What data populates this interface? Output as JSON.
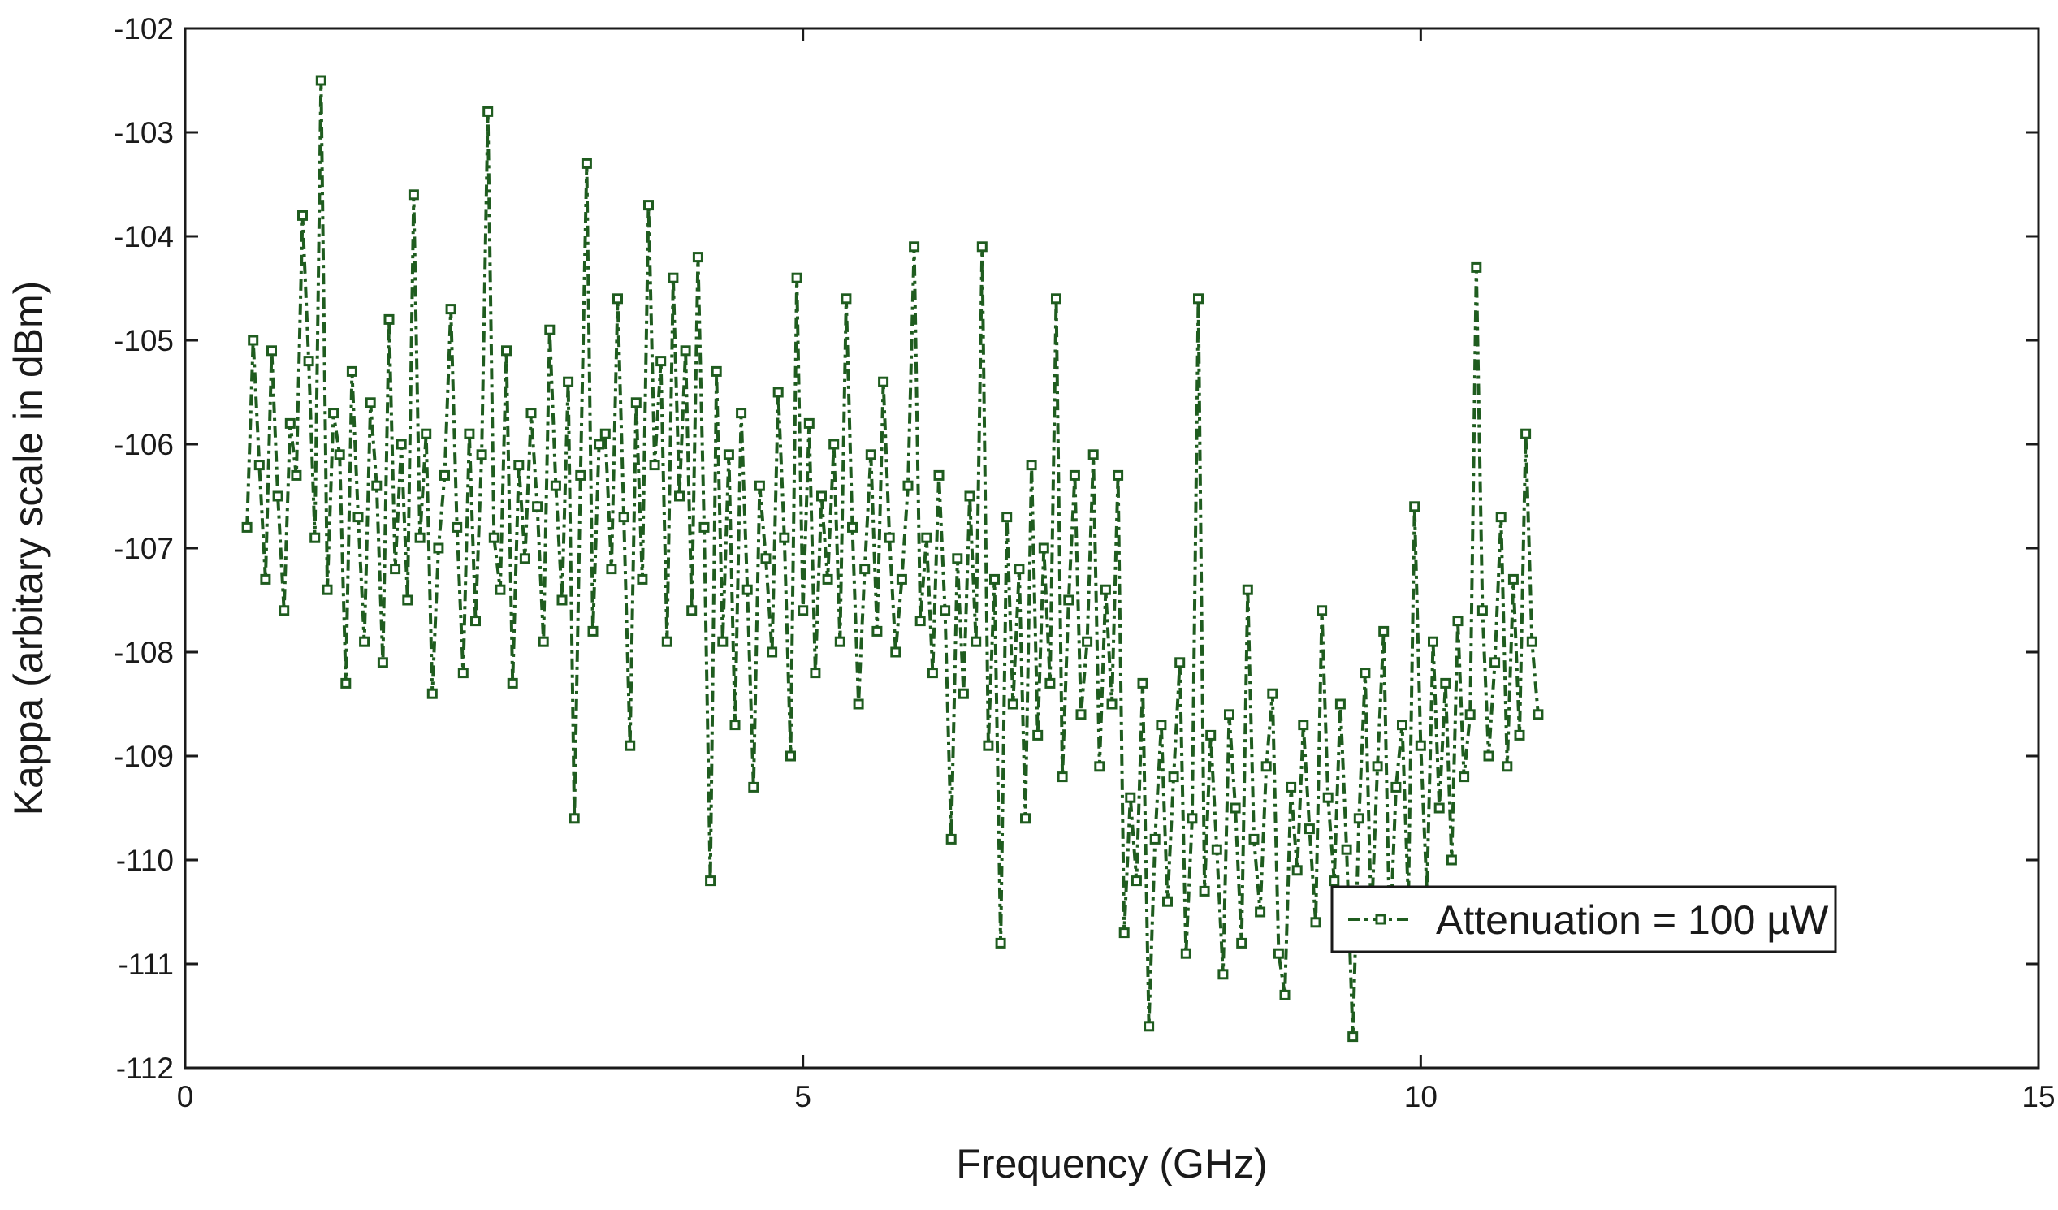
{
  "chart_data": {
    "type": "line",
    "title": "",
    "xlabel": "Frequency (GHz)",
    "ylabel": "Kappa (arbitary scale in dBm)",
    "xlim": [
      0,
      15
    ],
    "ylim": [
      -112,
      -102
    ],
    "x_ticks": [
      0,
      5,
      10,
      15
    ],
    "x_tick_labels": [
      "0",
      "5",
      "10",
      "15"
    ],
    "y_ticks": [
      -112,
      -111,
      -110,
      -109,
      -108,
      -107,
      -106,
      -105,
      -104,
      -103,
      -102
    ],
    "y_tick_labels": [
      "-112",
      "-111",
      "-110",
      "-109",
      "-108",
      "-107",
      "-106",
      "-105",
      "-104",
      "-103",
      "-102"
    ],
    "grid": false,
    "legend_position": "bottom-right",
    "series": [
      {
        "name": "Attenuation = 100 µW",
        "color": "#1f5c1f",
        "line_style": "dash-dot",
        "marker": "square",
        "x_start": 0.5,
        "x_step": 0.05,
        "values": [
          -106.8,
          -105.0,
          -106.2,
          -107.3,
          -105.1,
          -106.5,
          -107.6,
          -105.8,
          -106.3,
          -103.8,
          -105.2,
          -106.9,
          -102.5,
          -107.4,
          -105.7,
          -106.1,
          -108.3,
          -105.3,
          -106.7,
          -107.9,
          -105.6,
          -106.4,
          -108.1,
          -104.8,
          -107.2,
          -106.0,
          -107.5,
          -103.6,
          -106.9,
          -105.9,
          -108.4,
          -107.0,
          -106.3,
          -104.7,
          -106.8,
          -108.2,
          -105.9,
          -107.7,
          -106.1,
          -102.8,
          -106.9,
          -107.4,
          -105.1,
          -108.3,
          -106.2,
          -107.1,
          -105.7,
          -106.6,
          -107.9,
          -104.9,
          -106.4,
          -107.5,
          -105.4,
          -109.6,
          -106.3,
          -103.3,
          -107.8,
          -106.0,
          -105.9,
          -107.2,
          -104.6,
          -106.7,
          -108.9,
          -105.6,
          -107.3,
          -103.7,
          -106.2,
          -105.2,
          -107.9,
          -104.4,
          -106.5,
          -105.1,
          -107.6,
          -104.2,
          -106.8,
          -110.2,
          -105.3,
          -107.9,
          -106.1,
          -108.7,
          -105.7,
          -107.4,
          -109.3,
          -106.4,
          -107.1,
          -108.0,
          -105.5,
          -106.9,
          -109.0,
          -104.4,
          -107.6,
          -105.8,
          -108.2,
          -106.5,
          -107.3,
          -106.0,
          -107.9,
          -104.6,
          -106.8,
          -108.5,
          -107.2,
          -106.1,
          -107.8,
          -105.4,
          -106.9,
          -108.0,
          -107.3,
          -106.4,
          -104.1,
          -107.7,
          -106.9,
          -108.2,
          -106.3,
          -107.6,
          -109.8,
          -107.1,
          -108.4,
          -106.5,
          -107.9,
          -104.1,
          -108.9,
          -107.3,
          -110.8,
          -106.7,
          -108.5,
          -107.2,
          -109.6,
          -106.2,
          -108.8,
          -107.0,
          -108.3,
          -104.6,
          -109.2,
          -107.5,
          -106.3,
          -108.6,
          -107.9,
          -106.1,
          -109.1,
          -107.4,
          -108.5,
          -106.3,
          -110.7,
          -109.4,
          -110.2,
          -108.3,
          -111.6,
          -109.8,
          -108.7,
          -110.4,
          -109.2,
          -108.1,
          -110.9,
          -109.6,
          -104.6,
          -110.3,
          -108.8,
          -109.9,
          -111.1,
          -108.6,
          -109.5,
          -110.8,
          -107.4,
          -109.8,
          -110.5,
          -109.1,
          -108.4,
          -110.9,
          -111.3,
          -109.3,
          -110.1,
          -108.7,
          -109.7,
          -110.6,
          -107.6,
          -109.4,
          -110.2,
          -108.5,
          -109.9,
          -111.7,
          -109.6,
          -108.2,
          -110.6,
          -109.1,
          -107.8,
          -110.8,
          -109.3,
          -108.7,
          -110.4,
          -106.6,
          -108.9,
          -110.3,
          -107.9,
          -109.5,
          -108.3,
          -110.0,
          -107.7,
          -109.2,
          -108.6,
          -104.3,
          -107.6,
          -109.0,
          -108.1,
          -106.7,
          -109.1,
          -107.3,
          -108.8,
          -105.9,
          -107.9,
          -108.6
        ]
      }
    ]
  }
}
